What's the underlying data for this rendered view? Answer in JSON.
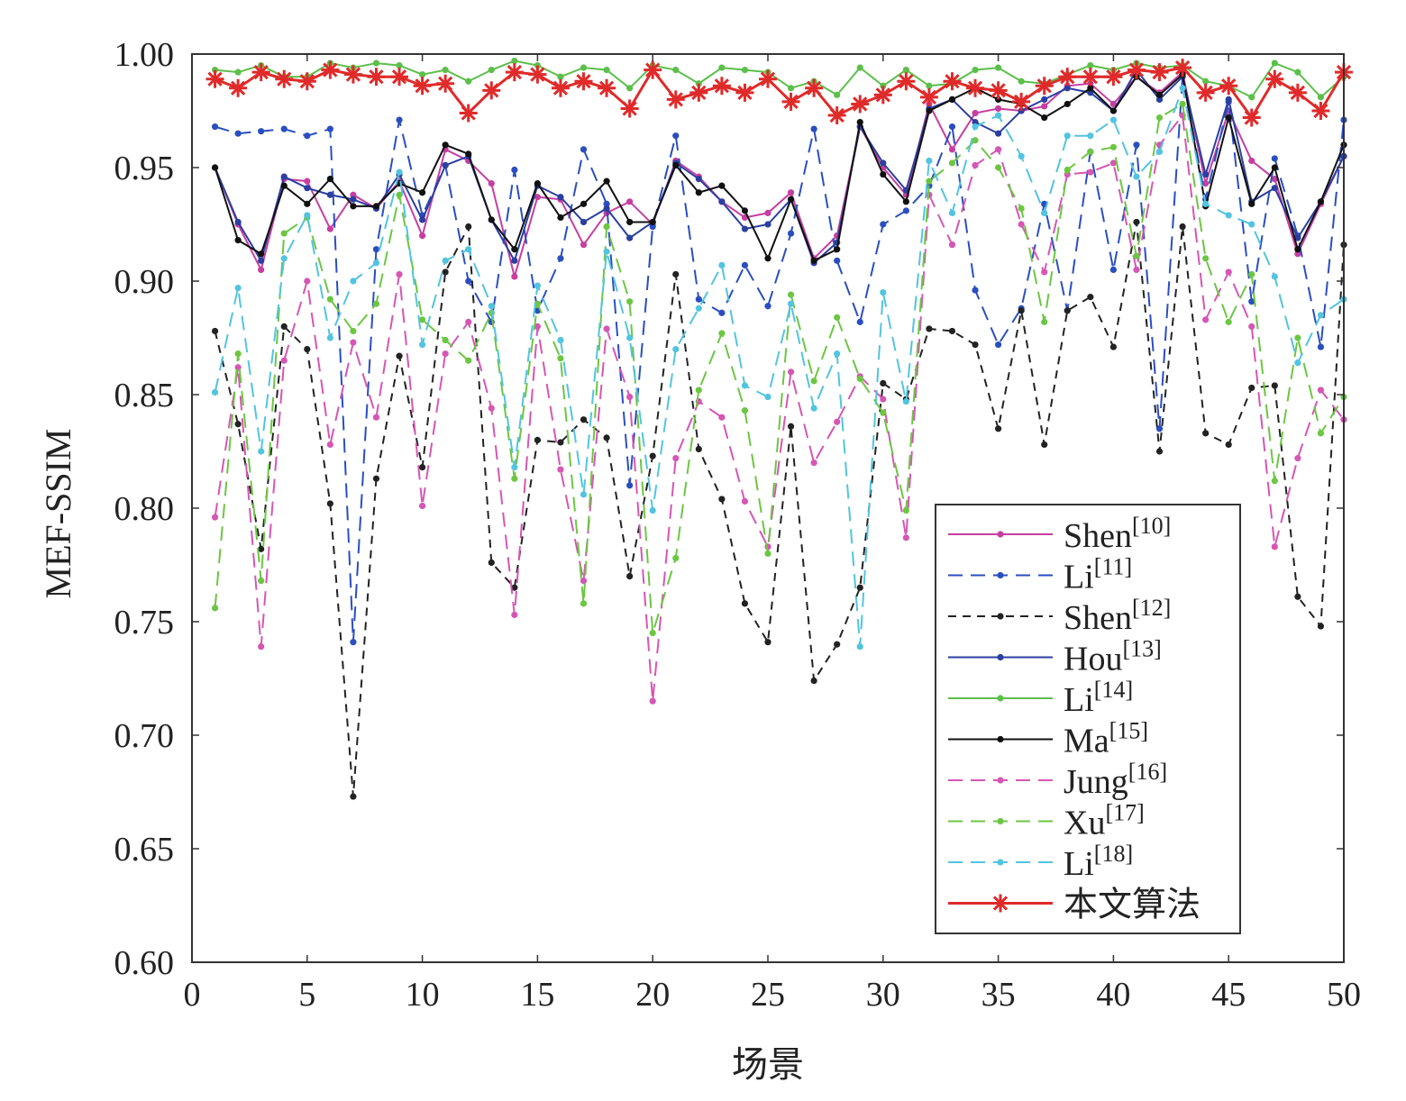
{
  "chart_data": {
    "type": "line",
    "title": "",
    "xlabel": "场景",
    "ylabel": "MEF-SSIM",
    "xlim": [
      0,
      50
    ],
    "ylim": [
      0.6,
      1.0
    ],
    "xticks": [
      "0",
      "5",
      "10",
      "15",
      "20",
      "25",
      "30",
      "35",
      "40",
      "45",
      "50"
    ],
    "yticks": [
      "0.60",
      "0.65",
      "0.70",
      "0.75",
      "0.80",
      "0.85",
      "0.90",
      "0.95",
      "1.00"
    ],
    "legend_position": "bottom-right",
    "x": [
      1,
      2,
      3,
      4,
      5,
      6,
      7,
      8,
      9,
      10,
      11,
      12,
      13,
      14,
      15,
      16,
      17,
      18,
      19,
      20,
      21,
      22,
      23,
      24,
      25,
      26,
      27,
      28,
      29,
      30,
      31,
      32,
      33,
      34,
      35,
      36,
      37,
      38,
      39,
      40,
      41,
      42,
      43,
      44,
      45,
      46,
      47,
      48,
      49,
      50
    ],
    "series": [
      {
        "name": "Shen",
        "ref": "[10]",
        "color": "#c63fa0",
        "dash": "solid",
        "marker": "dot",
        "values": [
          0.95,
          0.925,
          0.905,
          0.945,
          0.944,
          0.923,
          0.938,
          0.932,
          0.944,
          0.92,
          0.958,
          0.953,
          0.943,
          0.902,
          0.937,
          0.936,
          0.916,
          0.93,
          0.935,
          0.925,
          0.953,
          0.946,
          0.935,
          0.928,
          0.93,
          0.939,
          0.91,
          0.92,
          0.968,
          0.95,
          0.938,
          0.978,
          0.958,
          0.974,
          0.976,
          0.975,
          0.977,
          0.986,
          0.987,
          0.978,
          0.99,
          0.983,
          0.992,
          0.943,
          0.975,
          0.953,
          0.945,
          0.912,
          0.934,
          0.955
        ]
      },
      {
        "name": "Li",
        "ref": "[11]",
        "color": "#2a4ec0",
        "dash": "long",
        "marker": "dot",
        "values": [
          0.968,
          0.965,
          0.966,
          0.967,
          0.964,
          0.967,
          0.741,
          0.914,
          0.971,
          0.929,
          0.951,
          0.9,
          0.882,
          0.949,
          0.887,
          0.91,
          0.958,
          0.934,
          0.81,
          0.924,
          0.964,
          0.892,
          0.886,
          0.907,
          0.889,
          0.921,
          0.967,
          0.909,
          0.882,
          0.925,
          0.931,
          0.942,
          0.968,
          0.896,
          0.872,
          0.888,
          0.934,
          0.887,
          0.957,
          0.905,
          0.96,
          0.835,
          0.99,
          0.936,
          0.979,
          0.891,
          0.954,
          0.92,
          0.871,
          0.971
        ]
      },
      {
        "name": "Shen",
        "ref": "[12]",
        "color": "#222222",
        "dash": "short",
        "marker": "dot",
        "values": [
          0.878,
          0.837,
          0.782,
          0.88,
          0.87,
          0.802,
          0.673,
          0.813,
          0.867,
          0.818,
          0.904,
          0.924,
          0.776,
          0.765,
          0.83,
          0.829,
          0.839,
          0.831,
          0.77,
          0.823,
          0.903,
          0.826,
          0.804,
          0.758,
          0.741,
          0.836,
          0.724,
          0.74,
          0.765,
          0.855,
          0.848,
          0.879,
          0.878,
          0.872,
          0.835,
          0.887,
          0.828,
          0.887,
          0.893,
          0.871,
          0.926,
          0.825,
          0.924,
          0.833,
          0.828,
          0.853,
          0.854,
          0.761,
          0.748,
          0.916
        ]
      },
      {
        "name": "Hou",
        "ref": "[13]",
        "color": "#2b3fa0",
        "dash": "solid",
        "marker": "dot",
        "values": [
          0.95,
          0.926,
          0.909,
          0.946,
          0.941,
          0.938,
          0.936,
          0.932,
          0.947,
          0.927,
          0.951,
          0.955,
          0.927,
          0.909,
          0.942,
          0.937,
          0.926,
          0.932,
          0.919,
          0.926,
          0.952,
          0.945,
          0.935,
          0.923,
          0.925,
          0.936,
          0.908,
          0.917,
          0.968,
          0.952,
          0.94,
          0.976,
          0.98,
          0.97,
          0.965,
          0.975,
          0.98,
          0.985,
          0.983,
          0.975,
          0.993,
          0.98,
          0.99,
          0.947,
          0.98,
          0.935,
          0.941,
          0.919,
          0.935,
          0.955
        ]
      },
      {
        "name": "Li",
        "ref": "[14]",
        "color": "#5cbf4a",
        "dash": "solid",
        "marker": "dot",
        "values": [
          0.993,
          0.992,
          0.995,
          0.99,
          0.99,
          0.996,
          0.994,
          0.996,
          0.995,
          0.991,
          0.993,
          0.988,
          0.993,
          0.997,
          0.995,
          0.99,
          0.994,
          0.993,
          0.985,
          0.995,
          0.993,
          0.987,
          0.994,
          0.993,
          0.992,
          0.985,
          0.988,
          0.982,
          0.994,
          0.986,
          0.993,
          0.986,
          0.987,
          0.993,
          0.994,
          0.988,
          0.987,
          0.991,
          0.995,
          0.993,
          0.996,
          0.994,
          0.995,
          0.988,
          0.986,
          0.981,
          0.996,
          0.992,
          0.981,
          0.99
        ]
      },
      {
        "name": "Ma",
        "ref": "[15]",
        "color": "#111111",
        "dash": "solid",
        "marker": "dot",
        "values": [
          0.95,
          0.918,
          0.912,
          0.942,
          0.934,
          0.945,
          0.933,
          0.933,
          0.943,
          0.939,
          0.96,
          0.956,
          0.927,
          0.914,
          0.943,
          0.928,
          0.934,
          0.944,
          0.926,
          0.926,
          0.951,
          0.939,
          0.942,
          0.931,
          0.91,
          0.936,
          0.909,
          0.914,
          0.97,
          0.947,
          0.935,
          0.975,
          0.98,
          0.985,
          0.98,
          0.978,
          0.972,
          0.978,
          0.985,
          0.975,
          0.99,
          0.982,
          0.991,
          0.933,
          0.972,
          0.934,
          0.95,
          0.914,
          0.935,
          0.96
        ]
      },
      {
        "name": "Jung",
        "ref": "[16]",
        "color": "#d556b4",
        "dash": "long",
        "marker": "dot",
        "values": [
          0.796,
          0.862,
          0.739,
          0.865,
          0.9,
          0.828,
          0.873,
          0.84,
          0.903,
          0.801,
          0.868,
          0.882,
          0.844,
          0.753,
          0.88,
          0.817,
          0.768,
          0.879,
          0.849,
          0.715,
          0.822,
          0.847,
          0.84,
          0.803,
          0.783,
          0.86,
          0.82,
          0.838,
          0.858,
          0.848,
          0.787,
          0.938,
          0.916,
          0.951,
          0.958,
          0.925,
          0.904,
          0.947,
          0.948,
          0.952,
          0.905,
          0.96,
          0.973,
          0.883,
          0.904,
          0.88,
          0.783,
          0.822,
          0.852,
          0.839
        ]
      },
      {
        "name": "Xu",
        "ref": "[17]",
        "color": "#6cc642",
        "dash": "long",
        "marker": "dot",
        "values": [
          0.756,
          0.868,
          0.768,
          0.921,
          0.928,
          0.892,
          0.878,
          0.89,
          0.938,
          0.883,
          0.874,
          0.865,
          0.886,
          0.813,
          0.89,
          0.866,
          0.758,
          0.924,
          0.891,
          0.745,
          0.778,
          0.852,
          0.877,
          0.843,
          0.78,
          0.894,
          0.856,
          0.884,
          0.857,
          0.842,
          0.799,
          0.944,
          0.952,
          0.962,
          0.95,
          0.932,
          0.882,
          0.949,
          0.957,
          0.959,
          0.911,
          0.972,
          0.978,
          0.91,
          0.882,
          0.903,
          0.812,
          0.875,
          0.833,
          0.849
        ]
      },
      {
        "name": "Li",
        "ref": "[18]",
        "color": "#52c4e0",
        "dash": "long",
        "marker": "dot",
        "values": [
          0.851,
          0.897,
          0.825,
          0.91,
          0.929,
          0.875,
          0.9,
          0.908,
          0.948,
          0.872,
          0.909,
          0.914,
          0.889,
          0.818,
          0.898,
          0.874,
          0.806,
          0.913,
          0.875,
          0.799,
          0.87,
          0.888,
          0.907,
          0.854,
          0.849,
          0.89,
          0.844,
          0.868,
          0.739,
          0.895,
          0.847,
          0.953,
          0.93,
          0.968,
          0.973,
          0.955,
          0.93,
          0.964,
          0.964,
          0.971,
          0.946,
          0.957,
          0.985,
          0.934,
          0.929,
          0.925,
          0.902,
          0.864,
          0.885,
          0.892
        ]
      },
      {
        "name": "本文算法",
        "ref": "",
        "color": "#e02a2a",
        "dash": "solid",
        "marker": "star",
        "values": [
          0.989,
          0.985,
          0.992,
          0.989,
          0.988,
          0.993,
          0.991,
          0.99,
          0.99,
          0.986,
          0.987,
          0.974,
          0.984,
          0.992,
          0.991,
          0.985,
          0.988,
          0.985,
          0.976,
          0.993,
          0.98,
          0.983,
          0.986,
          0.983,
          0.989,
          0.979,
          0.985,
          0.973,
          0.978,
          0.982,
          0.988,
          0.981,
          0.988,
          0.985,
          0.984,
          0.979,
          0.986,
          0.99,
          0.99,
          0.99,
          0.993,
          0.992,
          0.994,
          0.983,
          0.986,
          0.972,
          0.989,
          0.983,
          0.975,
          0.992
        ]
      }
    ]
  }
}
